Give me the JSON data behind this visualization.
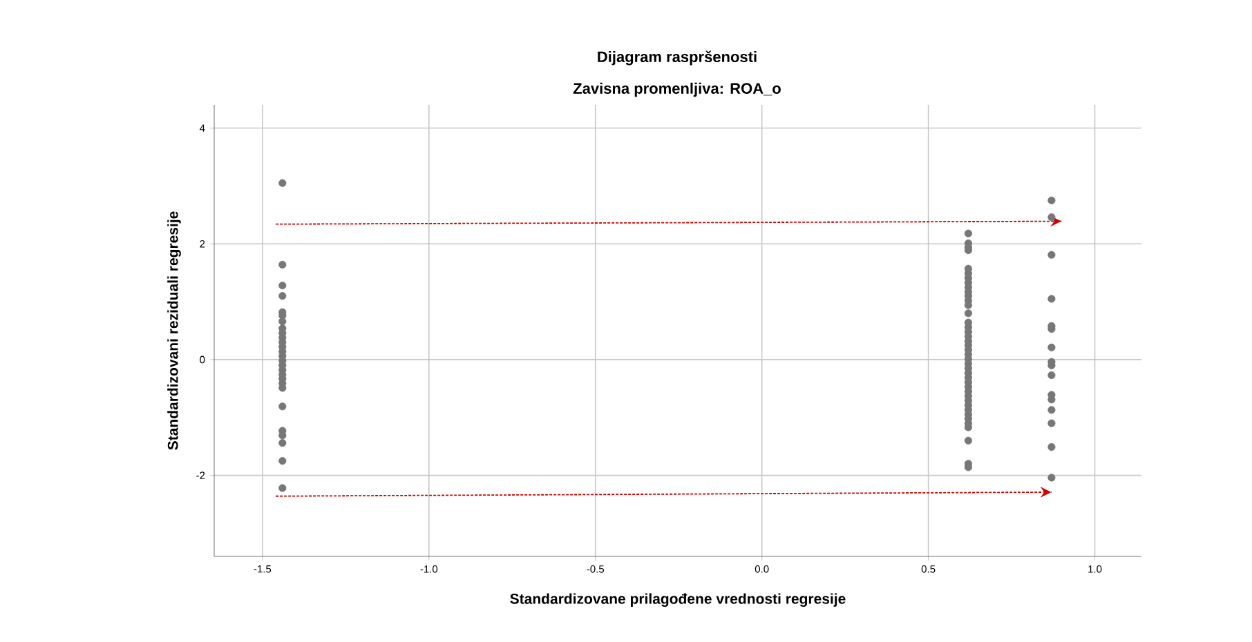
{
  "chart_data": {
    "type": "scatter",
    "title": "Dijagram raspršenosti",
    "subtitle": "Zavisna promenljiva: ROA_o",
    "xlabel": "Standardizovane prilagođene vrednosti regresije",
    "ylabel": "Standardizovani reziduali regresije",
    "xlim": [
      -1.645,
      1.14
    ],
    "ylim": [
      -3.4,
      4.4
    ],
    "xticks": [
      {
        "value": -1.5,
        "label": "-1.5"
      },
      {
        "value": -1.0,
        "label": "-1.0"
      },
      {
        "value": -0.5,
        "label": "-0.5"
      },
      {
        "value": 0,
        "label": "0.0"
      },
      {
        "value": 0.5,
        "label": "0.5"
      },
      {
        "value": 1.0,
        "label": "1.0"
      }
    ],
    "yticks": [
      -2,
      0,
      2,
      4
    ],
    "grid": true,
    "series": [
      {
        "type": "scatter",
        "color": "#777777",
        "marker": "circle",
        "x": [
          -1.44,
          -1.44,
          -1.44,
          -1.44,
          -1.44,
          -1.44,
          -1.44,
          -1.44,
          -1.44,
          -1.44,
          -1.44,
          -1.44,
          -1.44,
          -1.44,
          -1.44,
          -1.44,
          -1.44,
          -1.44,
          -1.44,
          -1.44,
          -1.44,
          -1.44,
          -1.44,
          -1.44,
          -1.44,
          -1.44,
          -1.44,
          0.62,
          0.62,
          0.62,
          0.62,
          0.62,
          0.62,
          0.62,
          0.62,
          0.62,
          0.62,
          0.62,
          0.62,
          0.62,
          0.62,
          0.62,
          0.62,
          0.62,
          0.62,
          0.62,
          0.62,
          0.62,
          0.62,
          0.62,
          0.62,
          0.62,
          0.62,
          0.62,
          0.62,
          0.62,
          0.62,
          0.62,
          0.62,
          0.62,
          0.62,
          0.62,
          0.62,
          0.62,
          0.62,
          0.62,
          0.62,
          0.62,
          0.87,
          0.87,
          0.87,
          0.87,
          0.87,
          0.87,
          0.87,
          0.87,
          0.87,
          0.87,
          0.87,
          0.87,
          0.87,
          0.87,
          0.87,
          0.87
        ],
        "values": [
          3.05,
          1.64,
          1.28,
          1.1,
          0.82,
          0.76,
          0.66,
          0.54,
          0.46,
          0.38,
          0.3,
          0.22,
          0.14,
          0.06,
          -0.02,
          -0.1,
          -0.18,
          -0.26,
          -0.33,
          -0.41,
          -0.49,
          -0.81,
          -1.23,
          -1.31,
          -1.44,
          -1.75,
          -2.22,
          2.18,
          2.01,
          1.94,
          1.89,
          1.57,
          1.49,
          1.41,
          1.33,
          1.25,
          1.17,
          1.1,
          1.02,
          0.94,
          0.8,
          0.64,
          0.56,
          0.48,
          0.4,
          0.32,
          0.25,
          0.17,
          0.09,
          0.01,
          -0.07,
          -0.15,
          -0.23,
          -0.31,
          -0.39,
          -0.47,
          -0.55,
          -0.63,
          -0.71,
          -0.79,
          -0.87,
          -0.95,
          -1.02,
          -1.1,
          -1.17,
          -1.4,
          -1.8,
          -1.86,
          2.75,
          2.46,
          1.81,
          1.05,
          0.58,
          0.53,
          0.21,
          -0.04,
          -0.1,
          -0.27,
          -0.61,
          -0.69,
          -0.87,
          -1.1,
          -1.51,
          -2.04
        ]
      },
      {
        "type": "line",
        "color": "#cc0000",
        "line_style": "dashed",
        "marker": "none",
        "x": [
          -1.46,
          0.9
        ],
        "values": [
          2.34,
          2.39
        ]
      },
      {
        "type": "line",
        "color": "#cc0000",
        "line_style": "dashed",
        "marker": "none",
        "x": [
          -1.46,
          0.87
        ],
        "values": [
          -2.36,
          -2.29
        ]
      }
    ]
  }
}
